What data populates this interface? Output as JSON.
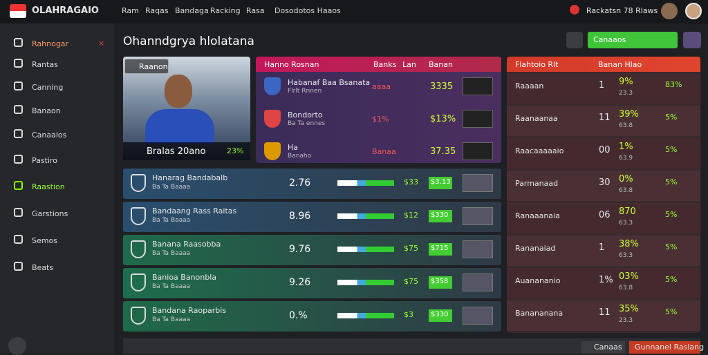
{
  "nav": {
    "brand": "OLAHRAGAIO",
    "links": [
      "Ram",
      "Raqas",
      "Bandaga",
      "Racking",
      "Rasa",
      "Dosodotos Haaos"
    ],
    "user": "Rackatsn 78 Rlaws"
  },
  "sidebar": {
    "items": [
      "Rahnogar",
      "Rantas",
      "Canning",
      "Banaon",
      "Canaalos",
      "Pastiro",
      "Raastion",
      "Garstions",
      "Semos",
      "Beats"
    ],
    "close": "×"
  },
  "main": {
    "title": "Ohanndgrya hlolatana",
    "button": "Canaaos"
  },
  "player": {
    "tag": "Raanon",
    "name": "Bralas 20ano",
    "stat": "23%"
  },
  "top_table": {
    "header": [
      "Hanno Rosnan",
      "Banks",
      "Lan",
      "Banan"
    ],
    "rows": [
      {
        "name": "Habanaf Baa Bsanata",
        "sub": "Flrlt Rnnen",
        "mid": "aaaa",
        "score": "3335"
      },
      {
        "name": "Bondorto",
        "sub": "Ba Ta ennes",
        "mid": "$1%",
        "score": "$13%"
      },
      {
        "name": "Ha",
        "sub": "Banaho",
        "mid": "Banaa",
        "score": "37.35"
      }
    ]
  },
  "rows": [
    {
      "name": "Hanarag Bandabalb",
      "sub": "Ba Ta Baaaa",
      "num": "2.76",
      "pct": "$33",
      "tag": "$3.13"
    },
    {
      "name": "Bandaang Rass Raitas",
      "sub": "Ba Ta Baaaa",
      "num": "8.96",
      "pct": "$12",
      "tag": "$330"
    },
    {
      "name": "Banana Raasobba",
      "sub": "Ba Ta Baaaa",
      "num": "9.76",
      "pct": "$75",
      "tag": "$715"
    },
    {
      "name": "Banioa Banonbla",
      "sub": "Ba Ta Baaaa",
      "num": "9.26",
      "pct": "$75",
      "tag": "$358"
    },
    {
      "name": "Bandana Raoparbis",
      "sub": "Ba Ta Baaaa",
      "num": "0.%",
      "pct": "$3",
      "tag": "$330"
    }
  ],
  "side_table": {
    "header": [
      "Flahtoio Rlt",
      "Banan Hlao"
    ],
    "rows": [
      {
        "name": "Raaaan",
        "num": "1",
        "pct": "9%",
        "sub": "23.3",
        "pct2": "83%"
      },
      {
        "name": "Raanaanaa",
        "num": "11",
        "pct": "39%",
        "sub": "63.8",
        "pct2": "5%"
      },
      {
        "name": "Raacaaaaaio",
        "num": "00",
        "pct": "1%",
        "sub": "63.9",
        "pct2": "5%"
      },
      {
        "name": "Parmanaad",
        "num": "30",
        "pct": "0%",
        "sub": "63.8",
        "pct2": "5%"
      },
      {
        "name": "Ranaaanaia",
        "num": "06",
        "pct": "870",
        "sub": "63.3",
        "pct2": "5%"
      },
      {
        "name": "Rananaiad",
        "num": "1",
        "pct": "38%",
        "sub": "63.3",
        "pct2": "5%"
      },
      {
        "name": "Auanananio",
        "num": "1%",
        "pct": "03%",
        "sub": "63.8",
        "pct2": "5%"
      },
      {
        "name": "Banananana",
        "num": "11",
        "pct": "35%",
        "sub": "23.3",
        "pct2": "5%"
      }
    ]
  },
  "footer": {
    "buttons": [
      "Canaas",
      "Gunnanel Raslang"
    ]
  }
}
